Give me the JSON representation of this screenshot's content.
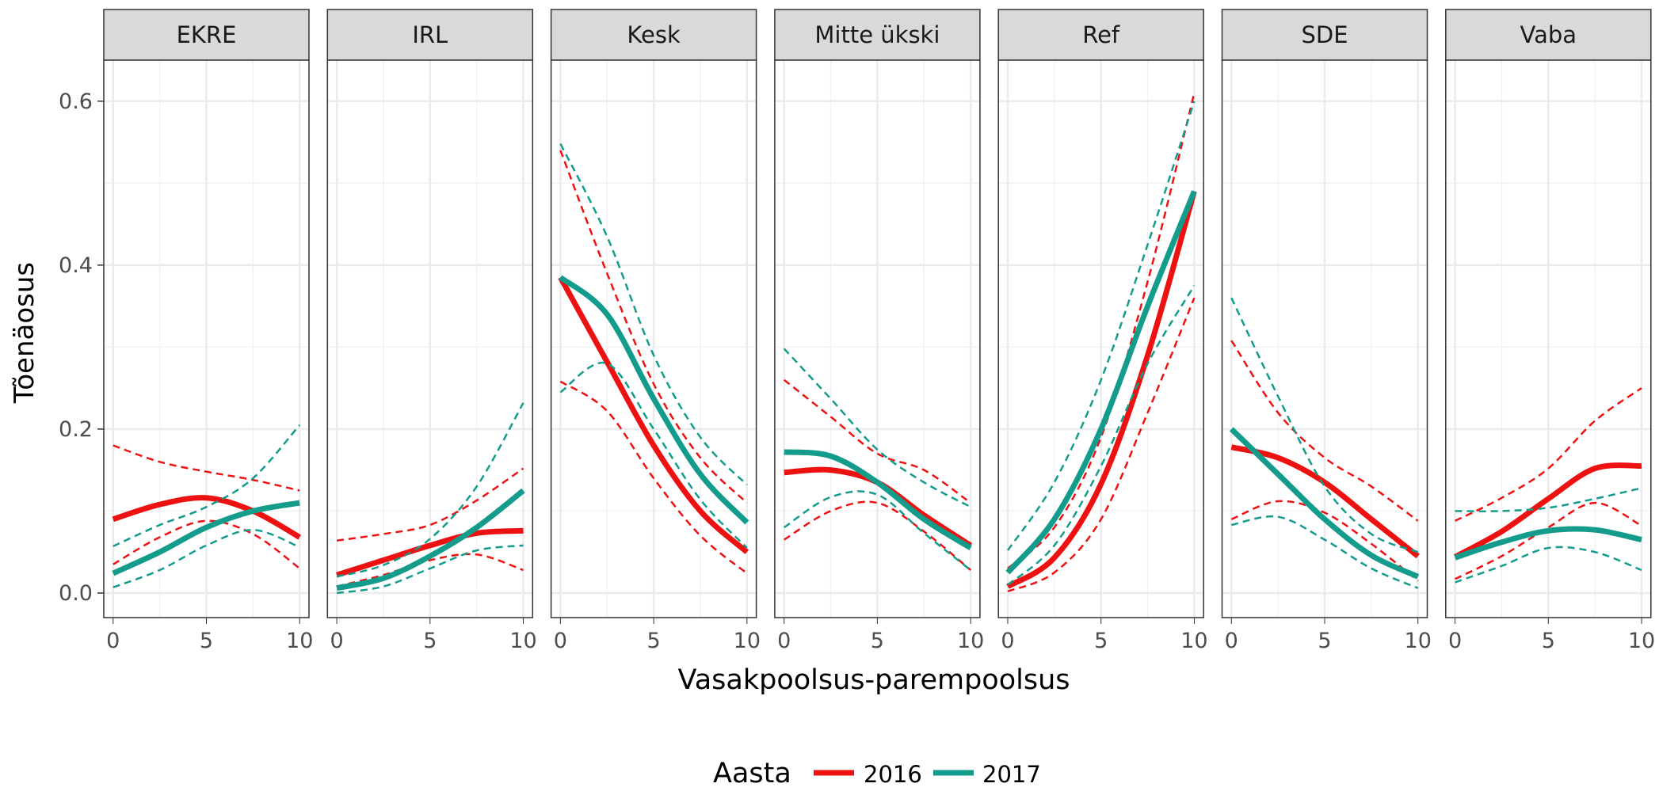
{
  "chart_data": {
    "type": "line",
    "facet_variable": "party",
    "facets": [
      "EKRE",
      "IRL",
      "Kesk",
      "Mitte ükski",
      "Ref",
      "SDE",
      "Vaba"
    ],
    "xlabel": "Vasakpoolsus-parempoolsus",
    "ylabel": "Tõenäosus",
    "xlim": [
      -0.5,
      10.5
    ],
    "ylim": [
      -0.03,
      0.65
    ],
    "x_ticks": [
      0,
      5,
      10
    ],
    "x_tick_labels": [
      "0",
      "5",
      "10"
    ],
    "y_ticks": [
      0.0,
      0.2,
      0.4,
      0.6
    ],
    "y_tick_labels": [
      "0.0",
      "0.2",
      "0.4",
      "0.6"
    ],
    "grid": true,
    "legend": {
      "title": "Aasta",
      "position": "bottom",
      "entries": [
        {
          "label": "2016",
          "color": "#ee1111"
        },
        {
          "label": "2017",
          "color": "#139c8c"
        }
      ]
    },
    "x": [
      0,
      2.5,
      5,
      7.5,
      10
    ],
    "series": [
      {
        "facet": "EKRE",
        "name": "2016",
        "color": "#ee1111",
        "fit": [
          0.09,
          0.108,
          0.116,
          0.1,
          0.068
        ],
        "lower": [
          0.035,
          0.068,
          0.088,
          0.072,
          0.03
        ],
        "upper": [
          0.18,
          0.16,
          0.148,
          0.138,
          0.125
        ]
      },
      {
        "facet": "EKRE",
        "name": "2017",
        "color": "#139c8c",
        "fit": [
          0.024,
          0.05,
          0.08,
          0.1,
          0.11
        ],
        "lower": [
          0.007,
          0.028,
          0.058,
          0.077,
          0.056
        ],
        "upper": [
          0.057,
          0.083,
          0.105,
          0.14,
          0.205
        ]
      },
      {
        "facet": "IRL",
        "name": "2016",
        "color": "#ee1111",
        "fit": [
          0.022,
          0.04,
          0.058,
          0.073,
          0.076
        ],
        "lower": [
          0.008,
          0.022,
          0.04,
          0.047,
          0.028
        ],
        "upper": [
          0.064,
          0.072,
          0.083,
          0.113,
          0.152
        ]
      },
      {
        "facet": "IRL",
        "name": "2017",
        "color": "#139c8c",
        "fit": [
          0.006,
          0.018,
          0.045,
          0.08,
          0.125
        ],
        "lower": [
          0.0,
          0.008,
          0.03,
          0.052,
          0.058
        ],
        "upper": [
          0.02,
          0.034,
          0.066,
          0.13,
          0.232
        ]
      },
      {
        "facet": "Kesk",
        "name": "2016",
        "color": "#ee1111",
        "fit": [
          0.385,
          0.282,
          0.18,
          0.1,
          0.05
        ],
        "lower": [
          0.258,
          0.222,
          0.14,
          0.07,
          0.024
        ],
        "upper": [
          0.54,
          0.39,
          0.255,
          0.165,
          0.11
        ]
      },
      {
        "facet": "Kesk",
        "name": "2017",
        "color": "#139c8c",
        "fit": [
          0.385,
          0.34,
          0.237,
          0.145,
          0.086
        ],
        "lower": [
          0.245,
          0.28,
          0.2,
          0.114,
          0.055
        ],
        "upper": [
          0.548,
          0.435,
          0.29,
          0.19,
          0.132
        ]
      },
      {
        "facet": "Mitte ükski",
        "name": "2016",
        "color": "#ee1111",
        "fit": [
          0.147,
          0.15,
          0.135,
          0.095,
          0.058
        ],
        "lower": [
          0.065,
          0.1,
          0.11,
          0.075,
          0.028
        ],
        "upper": [
          0.26,
          0.215,
          0.17,
          0.15,
          0.11
        ]
      },
      {
        "facet": "Mitte ükski",
        "name": "2017",
        "color": "#139c8c",
        "fit": [
          0.172,
          0.167,
          0.135,
          0.09,
          0.055
        ],
        "lower": [
          0.08,
          0.117,
          0.12,
          0.073,
          0.028
        ],
        "upper": [
          0.298,
          0.237,
          0.175,
          0.135,
          0.105
        ]
      },
      {
        "facet": "Ref",
        "name": "2016",
        "color": "#ee1111",
        "fit": [
          0.008,
          0.043,
          0.133,
          0.29,
          0.49
        ],
        "lower": [
          0.002,
          0.025,
          0.09,
          0.22,
          0.36
        ],
        "upper": [
          0.03,
          0.08,
          0.19,
          0.38,
          0.61
        ]
      },
      {
        "facet": "Ref",
        "name": "2017",
        "color": "#139c8c",
        "fit": [
          0.025,
          0.09,
          0.2,
          0.35,
          0.49
        ],
        "lower": [
          0.01,
          0.058,
          0.155,
          0.28,
          0.375
        ],
        "upper": [
          0.052,
          0.135,
          0.26,
          0.425,
          0.6
        ]
      },
      {
        "facet": "SDE",
        "name": "2016",
        "color": "#ee1111",
        "fit": [
          0.178,
          0.165,
          0.135,
          0.09,
          0.045
        ],
        "lower": [
          0.09,
          0.112,
          0.098,
          0.06,
          0.015
        ],
        "upper": [
          0.308,
          0.22,
          0.165,
          0.13,
          0.088
        ]
      },
      {
        "facet": "SDE",
        "name": "2017",
        "color": "#139c8c",
        "fit": [
          0.2,
          0.145,
          0.09,
          0.046,
          0.02
        ],
        "lower": [
          0.083,
          0.093,
          0.065,
          0.03,
          0.006
        ],
        "upper": [
          0.36,
          0.24,
          0.13,
          0.072,
          0.05
        ]
      },
      {
        "facet": "Vaba",
        "name": "2016",
        "color": "#ee1111",
        "fit": [
          0.044,
          0.075,
          0.115,
          0.152,
          0.155
        ],
        "lower": [
          0.017,
          0.045,
          0.08,
          0.11,
          0.082
        ],
        "upper": [
          0.088,
          0.116,
          0.152,
          0.21,
          0.25
        ]
      },
      {
        "facet": "Vaba",
        "name": "2017",
        "color": "#139c8c",
        "fit": [
          0.043,
          0.062,
          0.076,
          0.077,
          0.065
        ],
        "lower": [
          0.013,
          0.033,
          0.055,
          0.05,
          0.028
        ],
        "upper": [
          0.1,
          0.1,
          0.104,
          0.115,
          0.128
        ]
      }
    ]
  }
}
